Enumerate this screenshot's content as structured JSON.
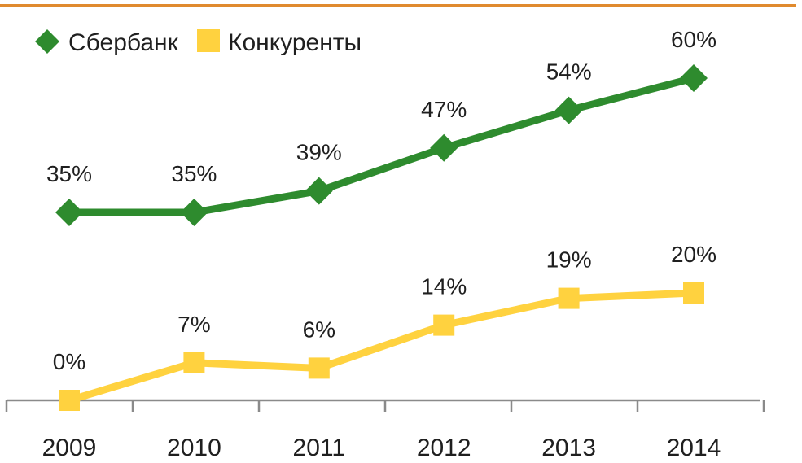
{
  "colors": {
    "top_rule": "#e08a2e",
    "axis": "#8a8a8a",
    "sber": "#2e8b2e",
    "competitors": "#ffd23f"
  },
  "chart_data": {
    "type": "line",
    "x": [
      "2009",
      "2010",
      "2011",
      "2012",
      "2013",
      "2014"
    ],
    "ylim": [
      0,
      65
    ],
    "grid": false,
    "legend_position": "top-left",
    "series": [
      {
        "name": "Сбербанк",
        "values": [
          35,
          35,
          39,
          47,
          54,
          60
        ],
        "labels": [
          "35%",
          "35%",
          "39%",
          "47%",
          "54%",
          "60%"
        ],
        "marker": "diamond"
      },
      {
        "name": "Конкуренты",
        "values": [
          0,
          7,
          6,
          14,
          19,
          20
        ],
        "labels": [
          "0%",
          "7%",
          "6%",
          "14%",
          "19%",
          "20%"
        ],
        "marker": "square"
      }
    ]
  }
}
